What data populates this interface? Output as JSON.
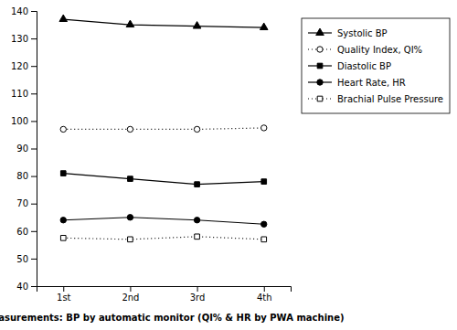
{
  "chart_data": {
    "type": "line",
    "categories": [
      "1st",
      "2nd",
      "3rd",
      "4th"
    ],
    "xlabel": "Measurements: BP by automatic monitor (QI% & HR by PWA machine)",
    "series": [
      {
        "name": "Systolic BP",
        "color": "#000000",
        "marker": "triangle",
        "line_style": "solid",
        "values": [
          137.0,
          135.0,
          134.5,
          134.0
        ]
      },
      {
        "name": "Quality Index, QI%",
        "color": "#000000",
        "marker": "circle-open",
        "line_style": "dotted",
        "values": [
          97.0,
          97.0,
          97.0,
          97.5
        ]
      },
      {
        "name": "Diastolic BP",
        "color": "#000000",
        "marker": "square",
        "line_style": "solid",
        "values": [
          81.0,
          79.0,
          77.0,
          78.0
        ]
      },
      {
        "name": "Heart Rate, HR",
        "color": "#000000",
        "marker": "circle",
        "line_style": "solid",
        "values": [
          64.0,
          65.0,
          64.0,
          62.5
        ]
      },
      {
        "name": "Brachial Pulse Pressure",
        "color": "#000000",
        "marker": "square-open",
        "line_style": "dotted",
        "values": [
          57.5,
          57.0,
          58.0,
          57.0
        ]
      }
    ],
    "ylim": [
      40,
      140
    ],
    "yticks": [
      40,
      50,
      60,
      70,
      80,
      90,
      100,
      110,
      120,
      130,
      140
    ],
    "grid": false,
    "legend": "right"
  }
}
